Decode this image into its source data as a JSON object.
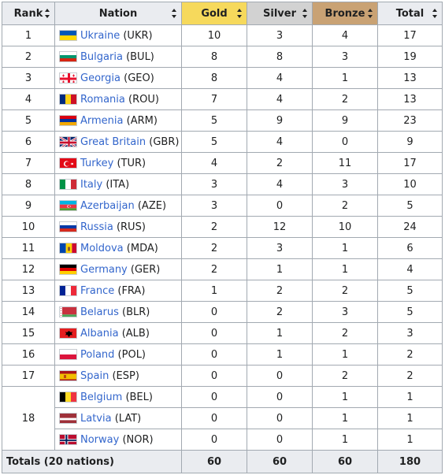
{
  "headers": {
    "rank": "Rank",
    "nation": "Nation",
    "gold": "Gold",
    "silver": "Silver",
    "bronze": "Bronze",
    "total": "Total"
  },
  "rows": [
    {
      "rank": "1",
      "name": "Ukraine",
      "code": "(UKR)",
      "gold": "10",
      "silver": "3",
      "bronze": "4",
      "total": "17",
      "flag": "ukraine-flag-icon"
    },
    {
      "rank": "2",
      "name": "Bulgaria",
      "code": "(BUL)",
      "gold": "8",
      "silver": "8",
      "bronze": "3",
      "total": "19",
      "flag": "bulgaria-flag-icon"
    },
    {
      "rank": "3",
      "name": "Georgia",
      "code": "(GEO)",
      "gold": "8",
      "silver": "4",
      "bronze": "1",
      "total": "13",
      "flag": "georgia-flag-icon"
    },
    {
      "rank": "4",
      "name": "Romania",
      "code": "(ROU)",
      "gold": "7",
      "silver": "4",
      "bronze": "2",
      "total": "13",
      "flag": "romania-flag-icon"
    },
    {
      "rank": "5",
      "name": "Armenia",
      "code": "(ARM)",
      "gold": "5",
      "silver": "9",
      "bronze": "9",
      "total": "23",
      "flag": "armenia-flag-icon"
    },
    {
      "rank": "6",
      "name": "Great Britain",
      "code": "(GBR)",
      "gold": "5",
      "silver": "4",
      "bronze": "0",
      "total": "9",
      "flag": "great-britain-flag-icon"
    },
    {
      "rank": "7",
      "name": "Turkey",
      "code": "(TUR)",
      "gold": "4",
      "silver": "2",
      "bronze": "11",
      "total": "17",
      "flag": "turkey-flag-icon"
    },
    {
      "rank": "8",
      "name": "Italy",
      "code": "(ITA)",
      "gold": "3",
      "silver": "4",
      "bronze": "3",
      "total": "10",
      "flag": "italy-flag-icon"
    },
    {
      "rank": "9",
      "name": "Azerbaijan",
      "code": "(AZE)",
      "gold": "3",
      "silver": "0",
      "bronze": "2",
      "total": "5",
      "flag": "azerbaijan-flag-icon"
    },
    {
      "rank": "10",
      "name": "Russia",
      "code": "(RUS)",
      "gold": "2",
      "silver": "12",
      "bronze": "10",
      "total": "24",
      "flag": "russia-flag-icon"
    },
    {
      "rank": "11",
      "name": "Moldova",
      "code": "(MDA)",
      "gold": "2",
      "silver": "3",
      "bronze": "1",
      "total": "6",
      "flag": "moldova-flag-icon"
    },
    {
      "rank": "12",
      "name": "Germany",
      "code": "(GER)",
      "gold": "2",
      "silver": "1",
      "bronze": "1",
      "total": "4",
      "flag": "germany-flag-icon"
    },
    {
      "rank": "13",
      "name": "France",
      "code": "(FRA)",
      "gold": "1",
      "silver": "2",
      "bronze": "2",
      "total": "5",
      "flag": "france-flag-icon"
    },
    {
      "rank": "14",
      "name": "Belarus",
      "code": "(BLR)",
      "gold": "0",
      "silver": "2",
      "bronze": "3",
      "total": "5",
      "flag": "belarus-flag-icon"
    },
    {
      "rank": "15",
      "name": "Albania",
      "code": "(ALB)",
      "gold": "0",
      "silver": "1",
      "bronze": "2",
      "total": "3",
      "flag": "albania-flag-icon"
    },
    {
      "rank": "16",
      "name": "Poland",
      "code": "(POL)",
      "gold": "0",
      "silver": "1",
      "bronze": "1",
      "total": "2",
      "flag": "poland-flag-icon"
    },
    {
      "rank": "17",
      "name": "Spain",
      "code": "(ESP)",
      "gold": "0",
      "silver": "0",
      "bronze": "2",
      "total": "2",
      "flag": "spain-flag-icon"
    },
    {
      "rank": "18",
      "name": "Belgium",
      "code": "(BEL)",
      "gold": "0",
      "silver": "0",
      "bronze": "1",
      "total": "1",
      "flag": "belgium-flag-icon"
    },
    {
      "rank": "",
      "name": "Latvia",
      "code": "(LAT)",
      "gold": "0",
      "silver": "0",
      "bronze": "1",
      "total": "1",
      "flag": "latvia-flag-icon"
    },
    {
      "rank": "",
      "name": "Norway",
      "code": "(NOR)",
      "gold": "0",
      "silver": "0",
      "bronze": "1",
      "total": "1",
      "flag": "norway-flag-icon"
    }
  ],
  "totals": {
    "label": "Totals (20 nations)",
    "gold": "60",
    "silver": "60",
    "bronze": "60",
    "total": "180"
  },
  "colors": {
    "gold_header": "#f6d95c",
    "silver_header": "#d2d2d2",
    "bronze_header": "#c9a274",
    "link": "#3366cc"
  }
}
